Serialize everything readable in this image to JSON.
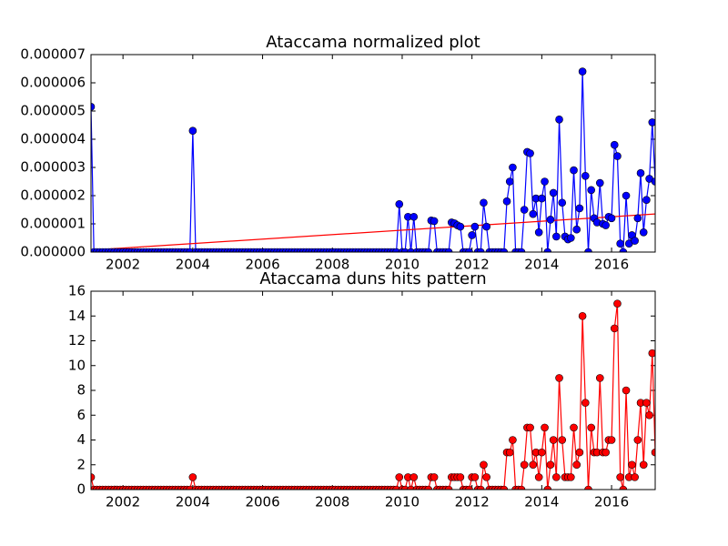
{
  "chart_data": [
    {
      "type": "line",
      "title": "Ataccama normalized plot",
      "xlim": [
        2001.0833,
        2017.25
      ],
      "xticks": [
        2002,
        2004,
        2006,
        2008,
        2010,
        2012,
        2014,
        2016
      ],
      "ylim": [
        0,
        7e-06
      ],
      "yticks": [
        {
          "value": 0,
          "label": "0.000000"
        },
        {
          "value": 1e-06,
          "label": "0.000001"
        },
        {
          "value": 2e-06,
          "label": "0.000002"
        },
        {
          "value": 3e-06,
          "label": "0.000003"
        },
        {
          "value": 4e-06,
          "label": "0.000004"
        },
        {
          "value": 5e-06,
          "label": "0.000005"
        },
        {
          "value": 6e-06,
          "label": "0.000006"
        },
        {
          "value": 7e-06,
          "label": "0.000007"
        }
      ],
      "x": [
        2001.0833,
        2001.1667,
        2001.25,
        2001.3333,
        2001.4167,
        2001.5,
        2001.5833,
        2001.6667,
        2001.75,
        2001.8333,
        2001.9167,
        2002,
        2002.0833,
        2002.1667,
        2002.25,
        2002.3333,
        2002.4167,
        2002.5,
        2002.5833,
        2002.6667,
        2002.75,
        2002.8333,
        2002.9167,
        2003,
        2003.0833,
        2003.1667,
        2003.25,
        2003.3333,
        2003.4167,
        2003.5,
        2003.5833,
        2003.6667,
        2003.75,
        2003.8333,
        2003.9167,
        2004,
        2004.0833,
        2004.1667,
        2004.25,
        2004.3333,
        2004.4167,
        2004.5,
        2004.5833,
        2004.6667,
        2004.75,
        2004.8333,
        2004.9167,
        2005,
        2005.0833,
        2005.1667,
        2005.25,
        2005.3333,
        2005.4167,
        2005.5,
        2005.5833,
        2005.6667,
        2005.75,
        2005.8333,
        2005.9167,
        2006,
        2006.0833,
        2006.1667,
        2006.25,
        2006.3333,
        2006.4167,
        2006.5,
        2006.5833,
        2006.6667,
        2006.75,
        2006.8333,
        2006.9167,
        2007,
        2007.0833,
        2007.1667,
        2007.25,
        2007.3333,
        2007.4167,
        2007.5,
        2007.5833,
        2007.6667,
        2007.75,
        2007.8333,
        2007.9167,
        2008,
        2008.0833,
        2008.1667,
        2008.25,
        2008.3333,
        2008.4167,
        2008.5,
        2008.5833,
        2008.6667,
        2008.75,
        2008.8333,
        2008.9167,
        2009,
        2009.0833,
        2009.1667,
        2009.25,
        2009.3333,
        2009.4167,
        2009.5,
        2009.5833,
        2009.6667,
        2009.75,
        2009.8333,
        2009.9167,
        2010,
        2010.0833,
        2010.1667,
        2010.25,
        2010.3333,
        2010.4167,
        2010.5,
        2010.5833,
        2010.6667,
        2010.75,
        2010.8333,
        2010.9167,
        2011,
        2011.0833,
        2011.1667,
        2011.25,
        2011.3333,
        2011.4167,
        2011.5,
        2011.5833,
        2011.6667,
        2011.75,
        2011.8333,
        2011.9167,
        2012,
        2012.0833,
        2012.1667,
        2012.25,
        2012.3333,
        2012.4167,
        2012.5,
        2012.5833,
        2012.6667,
        2012.75,
        2012.8333,
        2012.9167,
        2013,
        2013.0833,
        2013.1667,
        2013.25,
        2013.3333,
        2013.4167,
        2013.5,
        2013.5833,
        2013.6667,
        2013.75,
        2013.8333,
        2013.9167,
        2014,
        2014.0833,
        2014.1667,
        2014.25,
        2014.3333,
        2014.4167,
        2014.5,
        2014.5833,
        2014.6667,
        2014.75,
        2014.8333,
        2014.9167,
        2015,
        2015.0833,
        2015.1667,
        2015.25,
        2015.3333,
        2015.4167,
        2015.5,
        2015.5833,
        2015.6667,
        2015.75,
        2015.8333,
        2015.9167,
        2016,
        2016.0833,
        2016.1667,
        2016.25,
        2016.3333,
        2016.4167,
        2016.5,
        2016.5833,
        2016.6667,
        2016.75,
        2016.8333,
        2016.9167,
        2017,
        2017.0833,
        2017.1667,
        2017.25
      ],
      "series": [
        {
          "color": "#0000ff",
          "values": [
            5.15e-06,
            0,
            0,
            0,
            0,
            0,
            0,
            0,
            0,
            0,
            0,
            0,
            0,
            0,
            0,
            0,
            0,
            0,
            0,
            0,
            0,
            0,
            0,
            0,
            0,
            0,
            0,
            0,
            0,
            0,
            0,
            0,
            0,
            0,
            0,
            4.3e-06,
            0,
            0,
            0,
            0,
            0,
            0,
            0,
            0,
            0,
            0,
            0,
            0,
            0,
            0,
            0,
            0,
            0,
            0,
            0,
            0,
            0,
            0,
            0,
            0,
            0,
            0,
            0,
            0,
            0,
            0,
            0,
            0,
            0,
            0,
            0,
            0,
            0,
            0,
            0,
            0,
            0,
            0,
            0,
            0,
            0,
            0,
            0,
            0,
            0,
            0,
            0,
            0,
            0,
            0,
            0,
            0,
            0,
            0,
            0,
            0,
            0,
            0,
            0,
            0,
            0,
            0,
            0,
            0,
            0,
            0,
            1.7e-06,
            0,
            0,
            1.25e-06,
            0,
            1.25e-06,
            0,
            0,
            0,
            0,
            0,
            1.12e-06,
            1.1e-06,
            0,
            0,
            0,
            0,
            0,
            1.05e-06,
            1.02e-06,
            9.5e-07,
            9e-07,
            0,
            0,
            0,
            6e-07,
            9e-07,
            0,
            0,
            1.75e-06,
            9e-07,
            0,
            0,
            0,
            0,
            0,
            0,
            1.8e-06,
            2.5e-06,
            3e-06,
            0,
            0,
            0,
            1.5e-06,
            3.55e-06,
            3.5e-06,
            1.35e-06,
            1.9e-06,
            7e-07,
            1.9e-06,
            2.5e-06,
            0,
            1.15e-06,
            2.1e-06,
            5.5e-07,
            4.7e-06,
            1.75e-06,
            5.5e-07,
            4.5e-07,
            5e-07,
            2.9e-06,
            8e-07,
            1.55e-06,
            6.4e-06,
            2.7e-06,
            0,
            2.2e-06,
            1.2e-06,
            1.05e-06,
            2.45e-06,
            1e-06,
            9.5e-07,
            1.25e-06,
            1.2e-06,
            3.8e-06,
            3.4e-06,
            3e-07,
            0,
            2e-06,
            3e-07,
            6e-07,
            4e-07,
            1.2e-06,
            2.8e-06,
            7e-07,
            1.85e-06,
            2.6e-06,
            4.6e-06,
            2.5e-06
          ]
        }
      ],
      "trend": {
        "color": "#ff0000",
        "x": [
          2001.0833,
          2017.25
        ],
        "values": [
          7e-08,
          1.35e-06
        ]
      }
    },
    {
      "type": "line",
      "title": "Ataccama duns hits pattern",
      "xlim": [
        2001.0833,
        2017.25
      ],
      "xticks": [
        2002,
        2004,
        2006,
        2008,
        2010,
        2012,
        2014,
        2016
      ],
      "ylim": [
        0,
        16
      ],
      "yticks": [
        0,
        2,
        4,
        6,
        8,
        10,
        12,
        14,
        16
      ],
      "x": [
        2001.0833,
        2001.1667,
        2001.25,
        2001.3333,
        2001.4167,
        2001.5,
        2001.5833,
        2001.6667,
        2001.75,
        2001.8333,
        2001.9167,
        2002,
        2002.0833,
        2002.1667,
        2002.25,
        2002.3333,
        2002.4167,
        2002.5,
        2002.5833,
        2002.6667,
        2002.75,
        2002.8333,
        2002.9167,
        2003,
        2003.0833,
        2003.1667,
        2003.25,
        2003.3333,
        2003.4167,
        2003.5,
        2003.5833,
        2003.6667,
        2003.75,
        2003.8333,
        2003.9167,
        2004,
        2004.0833,
        2004.1667,
        2004.25,
        2004.3333,
        2004.4167,
        2004.5,
        2004.5833,
        2004.6667,
        2004.75,
        2004.8333,
        2004.9167,
        2005,
        2005.0833,
        2005.1667,
        2005.25,
        2005.3333,
        2005.4167,
        2005.5,
        2005.5833,
        2005.6667,
        2005.75,
        2005.8333,
        2005.9167,
        2006,
        2006.0833,
        2006.1667,
        2006.25,
        2006.3333,
        2006.4167,
        2006.5,
        2006.5833,
        2006.6667,
        2006.75,
        2006.8333,
        2006.9167,
        2007,
        2007.0833,
        2007.1667,
        2007.25,
        2007.3333,
        2007.4167,
        2007.5,
        2007.5833,
        2007.6667,
        2007.75,
        2007.8333,
        2007.9167,
        2008,
        2008.0833,
        2008.1667,
        2008.25,
        2008.3333,
        2008.4167,
        2008.5,
        2008.5833,
        2008.6667,
        2008.75,
        2008.8333,
        2008.9167,
        2009,
        2009.0833,
        2009.1667,
        2009.25,
        2009.3333,
        2009.4167,
        2009.5,
        2009.5833,
        2009.6667,
        2009.75,
        2009.8333,
        2009.9167,
        2010,
        2010.0833,
        2010.1667,
        2010.25,
        2010.3333,
        2010.4167,
        2010.5,
        2010.5833,
        2010.6667,
        2010.75,
        2010.8333,
        2010.9167,
        2011,
        2011.0833,
        2011.1667,
        2011.25,
        2011.3333,
        2011.4167,
        2011.5,
        2011.5833,
        2011.6667,
        2011.75,
        2011.8333,
        2011.9167,
        2012,
        2012.0833,
        2012.1667,
        2012.25,
        2012.3333,
        2012.4167,
        2012.5,
        2012.5833,
        2012.6667,
        2012.75,
        2012.8333,
        2012.9167,
        2013,
        2013.0833,
        2013.1667,
        2013.25,
        2013.3333,
        2013.4167,
        2013.5,
        2013.5833,
        2013.6667,
        2013.75,
        2013.8333,
        2013.9167,
        2014,
        2014.0833,
        2014.1667,
        2014.25,
        2014.3333,
        2014.4167,
        2014.5,
        2014.5833,
        2014.6667,
        2014.75,
        2014.8333,
        2014.9167,
        2015,
        2015.0833,
        2015.1667,
        2015.25,
        2015.3333,
        2015.4167,
        2015.5,
        2015.5833,
        2015.6667,
        2015.75,
        2015.8333,
        2015.9167,
        2016,
        2016.0833,
        2016.1667,
        2016.25,
        2016.3333,
        2016.4167,
        2016.5,
        2016.5833,
        2016.6667,
        2016.75,
        2016.8333,
        2016.9167,
        2017,
        2017.0833,
        2017.1667,
        2017.25
      ],
      "series": [
        {
          "color": "#ff0000",
          "values": [
            1,
            0,
            0,
            0,
            0,
            0,
            0,
            0,
            0,
            0,
            0,
            0,
            0,
            0,
            0,
            0,
            0,
            0,
            0,
            0,
            0,
            0,
            0,
            0,
            0,
            0,
            0,
            0,
            0,
            0,
            0,
            0,
            0,
            0,
            0,
            1,
            0,
            0,
            0,
            0,
            0,
            0,
            0,
            0,
            0,
            0,
            0,
            0,
            0,
            0,
            0,
            0,
            0,
            0,
            0,
            0,
            0,
            0,
            0,
            0,
            0,
            0,
            0,
            0,
            0,
            0,
            0,
            0,
            0,
            0,
            0,
            0,
            0,
            0,
            0,
            0,
            0,
            0,
            0,
            0,
            0,
            0,
            0,
            0,
            0,
            0,
            0,
            0,
            0,
            0,
            0,
            0,
            0,
            0,
            0,
            0,
            0,
            0,
            0,
            0,
            0,
            0,
            0,
            0,
            0,
            0,
            1,
            0,
            0,
            1,
            0,
            1,
            0,
            0,
            0,
            0,
            0,
            1,
            1,
            0,
            0,
            0,
            0,
            0,
            1,
            1,
            1,
            1,
            0,
            0,
            0,
            1,
            1,
            0,
            0,
            2,
            1,
            0,
            0,
            0,
            0,
            0,
            0,
            3,
            3,
            4,
            0,
            0,
            0,
            2,
            5,
            5,
            2,
            3,
            1,
            3,
            5,
            0,
            2,
            4,
            1,
            9,
            4,
            1,
            1,
            1,
            5,
            2,
            3,
            14,
            7,
            0,
            5,
            3,
            3,
            9,
            3,
            3,
            4,
            4,
            13,
            15,
            1,
            0,
            8,
            1,
            2,
            1,
            4,
            7,
            2,
            7,
            6,
            11,
            3
          ]
        }
      ]
    }
  ]
}
